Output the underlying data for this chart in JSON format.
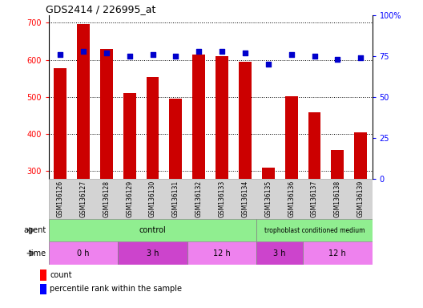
{
  "title": "GDS2414 / 226995_at",
  "samples": [
    "GSM136126",
    "GSM136127",
    "GSM136128",
    "GSM136129",
    "GSM136130",
    "GSM136131",
    "GSM136132",
    "GSM136133",
    "GSM136134",
    "GSM136135",
    "GSM136136",
    "GSM136137",
    "GSM136138",
    "GSM136139"
  ],
  "counts": [
    578,
    697,
    630,
    510,
    555,
    495,
    615,
    610,
    595,
    310,
    502,
    458,
    358,
    405
  ],
  "percentile": [
    76,
    78,
    77,
    75,
    76,
    75,
    78,
    78,
    77,
    70,
    76,
    75,
    73,
    74
  ],
  "ylim_left": [
    280,
    720
  ],
  "ylim_right": [
    0,
    100
  ],
  "yticks_left": [
    300,
    400,
    500,
    600,
    700
  ],
  "yticks_right": [
    0,
    25,
    50,
    75,
    100
  ],
  "ytick_right_labels": [
    "0",
    "25",
    "50",
    "75",
    "100%"
  ],
  "bar_color": "#cc0000",
  "dot_color": "#0000cc",
  "control_color": "#90ee90",
  "time_color1": "#ee82ee",
  "time_color2": "#cc44cc",
  "time_labels": [
    "0 h",
    "3 h",
    "12 h",
    "3 h",
    "12 h"
  ],
  "time_starts": [
    0,
    3,
    6,
    9,
    11
  ],
  "time_ends": [
    3,
    6,
    9,
    11,
    14
  ],
  "time_colors": [
    "#ee82ee",
    "#cc44cc",
    "#ee82ee",
    "#cc44cc",
    "#ee82ee"
  ],
  "legend_count_label": "count",
  "legend_pct_label": "percentile rank within the sample",
  "tick_label_bg": "#d3d3d3",
  "title_fontsize": 9,
  "axis_fontsize": 7,
  "bar_width": 0.55
}
